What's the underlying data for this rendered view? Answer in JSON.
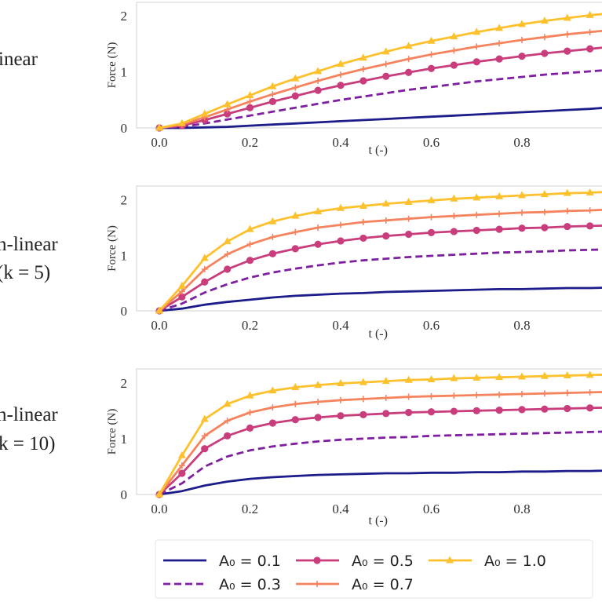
{
  "chart_data": [
    {
      "type": "line",
      "row_label": [
        "inear"
      ],
      "xlabel": "t (-)",
      "ylabel": "Force (N)",
      "xlim": [
        -0.05,
        1.05
      ],
      "ylim": [
        0,
        2.24
      ],
      "xticks": [
        "0.0",
        "0.2",
        "0.4",
        "0.6",
        "0.8"
      ],
      "yticks": [
        "0",
        "1",
        "2"
      ],
      "x": [
        0,
        0.05,
        0.1,
        0.15,
        0.2,
        0.25,
        0.3,
        0.35,
        0.4,
        0.45,
        0.5,
        0.55,
        0.6,
        0.65,
        0.7,
        0.75,
        0.8,
        0.85,
        0.9,
        0.95,
        1.0
      ],
      "series": [
        {
          "key": "a01",
          "values": [
            0,
            0,
            0.01,
            0.02,
            0.04,
            0.06,
            0.08,
            0.1,
            0.12,
            0.14,
            0.16,
            0.18,
            0.2,
            0.22,
            0.24,
            0.26,
            0.28,
            0.3,
            0.32,
            0.34,
            0.37
          ]
        },
        {
          "key": "a03",
          "values": [
            0,
            0.02,
            0.08,
            0.15,
            0.22,
            0.29,
            0.36,
            0.43,
            0.5,
            0.56,
            0.62,
            0.68,
            0.73,
            0.78,
            0.83,
            0.87,
            0.91,
            0.95,
            0.98,
            1.01,
            1.04
          ]
        },
        {
          "key": "a05",
          "values": [
            0,
            0.04,
            0.14,
            0.25,
            0.36,
            0.47,
            0.57,
            0.67,
            0.76,
            0.84,
            0.92,
            0.99,
            1.06,
            1.12,
            1.18,
            1.23,
            1.28,
            1.33,
            1.37,
            1.41,
            1.45
          ]
        },
        {
          "key": "a07",
          "values": [
            0,
            0.06,
            0.19,
            0.33,
            0.47,
            0.6,
            0.72,
            0.84,
            0.95,
            1.05,
            1.14,
            1.23,
            1.31,
            1.38,
            1.45,
            1.51,
            1.57,
            1.62,
            1.67,
            1.71,
            1.75
          ]
        },
        {
          "key": "a10",
          "values": [
            0,
            0.08,
            0.25,
            0.42,
            0.58,
            0.74,
            0.88,
            1.01,
            1.14,
            1.25,
            1.36,
            1.46,
            1.55,
            1.63,
            1.71,
            1.78,
            1.85,
            1.91,
            1.96,
            2.01,
            2.05
          ]
        }
      ]
    },
    {
      "type": "line",
      "row_label": [
        "n-linear",
        "(k = 5)"
      ],
      "xlabel": "t (-)",
      "ylabel": "Force (N)",
      "xlim": [
        -0.05,
        1.05
      ],
      "ylim": [
        0,
        2.25
      ],
      "xticks": [
        "0.0",
        "0.2",
        "0.4",
        "0.6",
        "0.8"
      ],
      "yticks": [
        "0",
        "1",
        "2"
      ],
      "x": [
        0,
        0.05,
        0.1,
        0.15,
        0.2,
        0.25,
        0.3,
        0.35,
        0.4,
        0.45,
        0.5,
        0.55,
        0.6,
        0.65,
        0.7,
        0.75,
        0.8,
        0.85,
        0.9,
        0.95,
        1.0
      ],
      "series": [
        {
          "key": "a01",
          "values": [
            0,
            0.04,
            0.11,
            0.16,
            0.2,
            0.24,
            0.27,
            0.29,
            0.31,
            0.32,
            0.34,
            0.35,
            0.36,
            0.37,
            0.38,
            0.39,
            0.39,
            0.4,
            0.41,
            0.41,
            0.42
          ]
        },
        {
          "key": "a03",
          "values": [
            0,
            0.13,
            0.33,
            0.48,
            0.6,
            0.69,
            0.76,
            0.82,
            0.87,
            0.91,
            0.94,
            0.97,
            0.99,
            1.01,
            1.03,
            1.05,
            1.06,
            1.07,
            1.09,
            1.1,
            1.11
          ]
        },
        {
          "key": "a05",
          "values": [
            0,
            0.25,
            0.52,
            0.75,
            0.91,
            1.03,
            1.12,
            1.2,
            1.26,
            1.31,
            1.35,
            1.38,
            1.41,
            1.43,
            1.45,
            1.47,
            1.49,
            1.5,
            1.52,
            1.53,
            1.54
          ]
        },
        {
          "key": "a07",
          "values": [
            0,
            0.35,
            0.75,
            1.02,
            1.2,
            1.33,
            1.42,
            1.5,
            1.55,
            1.6,
            1.63,
            1.66,
            1.69,
            1.71,
            1.73,
            1.75,
            1.77,
            1.78,
            1.8,
            1.81,
            1.83
          ]
        },
        {
          "key": "a10",
          "values": [
            0,
            0.45,
            0.95,
            1.25,
            1.47,
            1.61,
            1.71,
            1.79,
            1.85,
            1.89,
            1.93,
            1.96,
            1.99,
            2.02,
            2.04,
            2.06,
            2.08,
            2.1,
            2.12,
            2.13,
            2.15
          ]
        }
      ]
    },
    {
      "type": "line",
      "row_label": [
        "n-linear",
        "k = 10)"
      ],
      "xlabel": "t (-)",
      "ylabel": "Force (N)",
      "xlim": [
        -0.05,
        1.05
      ],
      "ylim": [
        0,
        2.25
      ],
      "xticks": [
        "0.0",
        "0.2",
        "0.4",
        "0.6",
        "0.8"
      ],
      "yticks": [
        "0",
        "1",
        "2"
      ],
      "x": [
        0,
        0.05,
        0.1,
        0.15,
        0.2,
        0.25,
        0.3,
        0.35,
        0.4,
        0.45,
        0.5,
        0.55,
        0.6,
        0.65,
        0.7,
        0.75,
        0.8,
        0.85,
        0.9,
        0.95,
        1.0
      ],
      "series": [
        {
          "key": "a01",
          "values": [
            0,
            0.06,
            0.16,
            0.23,
            0.28,
            0.31,
            0.33,
            0.35,
            0.36,
            0.37,
            0.38,
            0.38,
            0.39,
            0.39,
            0.4,
            0.4,
            0.41,
            0.41,
            0.42,
            0.42,
            0.43
          ]
        },
        {
          "key": "a03",
          "values": [
            0,
            0.2,
            0.5,
            0.68,
            0.79,
            0.86,
            0.91,
            0.95,
            0.98,
            1.0,
            1.02,
            1.03,
            1.05,
            1.06,
            1.07,
            1.08,
            1.09,
            1.1,
            1.11,
            1.12,
            1.13
          ]
        },
        {
          "key": "a05",
          "values": [
            0,
            0.38,
            0.82,
            1.05,
            1.19,
            1.28,
            1.34,
            1.38,
            1.41,
            1.43,
            1.45,
            1.47,
            1.48,
            1.49,
            1.5,
            1.51,
            1.52,
            1.53,
            1.54,
            1.55,
            1.56
          ]
        },
        {
          "key": "a07",
          "values": [
            0,
            0.52,
            1.05,
            1.32,
            1.47,
            1.56,
            1.62,
            1.66,
            1.69,
            1.71,
            1.73,
            1.75,
            1.76,
            1.77,
            1.78,
            1.79,
            1.8,
            1.81,
            1.82,
            1.83,
            1.84
          ]
        },
        {
          "key": "a10",
          "values": [
            0,
            0.7,
            1.35,
            1.62,
            1.77,
            1.86,
            1.92,
            1.96,
            1.99,
            2.01,
            2.03,
            2.05,
            2.06,
            2.08,
            2.09,
            2.1,
            2.11,
            2.12,
            2.13,
            2.14,
            2.15
          ]
        }
      ]
    }
  ],
  "legend": {
    "placement": "bottom",
    "entries": [
      {
        "key": "a01",
        "label": "A₀ = 0.1",
        "color": "#1c1c8a",
        "style": "solid",
        "marker": "none"
      },
      {
        "key": "a03",
        "label": "A₀ = 0.3",
        "color": "#7e1fa0",
        "style": "dashed",
        "marker": "none"
      },
      {
        "key": "a05",
        "label": "A₀ = 0.5",
        "color": "#c93d7d",
        "style": "solid",
        "marker": "circle"
      },
      {
        "key": "a07",
        "label": "A₀ = 0.7",
        "color": "#f5845e",
        "style": "solid",
        "marker": "plus"
      },
      {
        "key": "a10",
        "label": "A₀ = 1.0",
        "color": "#fcc12c",
        "style": "solid",
        "marker": "triangle"
      }
    ]
  },
  "grid": false
}
